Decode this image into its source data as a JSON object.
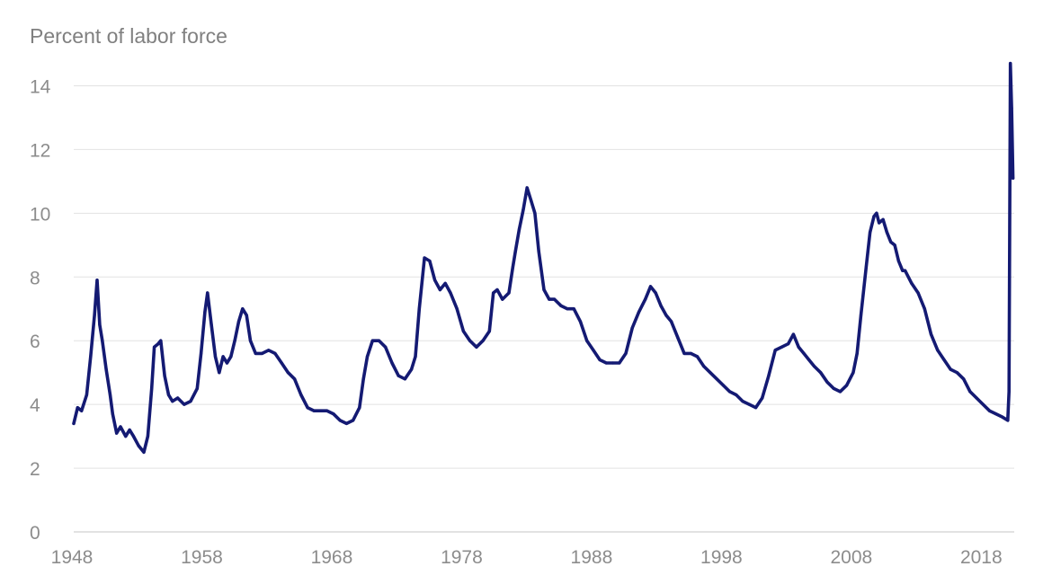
{
  "chart_data": {
    "type": "line",
    "title": "",
    "ylabel": "Percent of labor force",
    "xlabel": "",
    "ylim": [
      0,
      15
    ],
    "xlim": [
      1948,
      2020.4
    ],
    "y_ticks": [
      0,
      2,
      4,
      6,
      8,
      10,
      12,
      14
    ],
    "x_ticks": [
      1948,
      1958,
      1968,
      1978,
      1988,
      1998,
      2008,
      2018
    ],
    "grid": true,
    "line_color": "#141a73",
    "series": [
      {
        "x": [
          1948.0,
          1948.3,
          1948.6,
          1949.0,
          1949.3,
          1949.6,
          1949.8,
          1950.0,
          1950.2,
          1950.5,
          1950.8,
          1951.0,
          1951.3,
          1951.6,
          1952.0,
          1952.3,
          1952.6,
          1953.0,
          1953.4,
          1953.7,
          1954.0,
          1954.2,
          1954.5,
          1954.7,
          1955.0,
          1955.3,
          1955.6,
          1956.0,
          1956.5,
          1957.0,
          1957.5,
          1957.8,
          1958.1,
          1958.3,
          1958.6,
          1958.9,
          1959.2,
          1959.5,
          1959.8,
          1960.1,
          1960.4,
          1960.7,
          1961.0,
          1961.3,
          1961.6,
          1962.0,
          1962.5,
          1963.0,
          1963.5,
          1964.0,
          1964.5,
          1965.0,
          1965.5,
          1966.0,
          1966.5,
          1967.0,
          1967.5,
          1968.0,
          1968.5,
          1969.0,
          1969.5,
          1970.0,
          1970.3,
          1970.6,
          1971.0,
          1971.5,
          1972.0,
          1972.5,
          1973.0,
          1973.5,
          1974.0,
          1974.3,
          1974.6,
          1975.0,
          1975.4,
          1975.8,
          1976.2,
          1976.6,
          1977.0,
          1977.5,
          1978.0,
          1978.5,
          1979.0,
          1979.5,
          1980.0,
          1980.3,
          1980.6,
          1981.0,
          1981.5,
          1981.8,
          1982.0,
          1982.3,
          1982.6,
          1982.9,
          1983.2,
          1983.5,
          1983.8,
          1984.2,
          1984.6,
          1985.0,
          1985.5,
          1986.0,
          1986.5,
          1987.0,
          1987.5,
          1988.0,
          1988.5,
          1989.0,
          1989.5,
          1990.0,
          1990.5,
          1991.0,
          1991.5,
          1992.0,
          1992.4,
          1992.8,
          1993.2,
          1993.6,
          1994.0,
          1994.5,
          1995.0,
          1995.5,
          1996.0,
          1996.5,
          1997.0,
          1997.5,
          1998.0,
          1998.5,
          1999.0,
          1999.5,
          2000.0,
          2000.5,
          2001.0,
          2001.5,
          2002.0,
          2002.5,
          2003.0,
          2003.4,
          2003.8,
          2004.2,
          2004.6,
          2005.0,
          2005.5,
          2006.0,
          2006.5,
          2007.0,
          2007.5,
          2008.0,
          2008.3,
          2008.6,
          2009.0,
          2009.3,
          2009.6,
          2009.8,
          2010.0,
          2010.3,
          2010.6,
          2010.9,
          2011.2,
          2011.5,
          2011.8,
          2012.0,
          2012.5,
          2013.0,
          2013.5,
          2014.0,
          2014.5,
          2015.0,
          2015.5,
          2016.0,
          2016.5,
          2017.0,
          2017.5,
          2018.0,
          2018.5,
          2019.0,
          2019.5,
          2019.9,
          2020.0,
          2020.1,
          2020.2,
          2020.3
        ],
        "values": [
          3.4,
          3.9,
          3.8,
          4.3,
          5.5,
          6.8,
          7.9,
          6.5,
          6.0,
          5.1,
          4.3,
          3.7,
          3.1,
          3.3,
          3.0,
          3.2,
          3.0,
          2.7,
          2.5,
          3.0,
          4.5,
          5.8,
          5.9,
          6.0,
          4.9,
          4.3,
          4.1,
          4.2,
          4.0,
          4.1,
          4.5,
          5.6,
          6.9,
          7.5,
          6.5,
          5.5,
          5.0,
          5.5,
          5.3,
          5.5,
          6.0,
          6.6,
          7.0,
          6.8,
          6.0,
          5.6,
          5.6,
          5.7,
          5.6,
          5.3,
          5.0,
          4.8,
          4.3,
          3.9,
          3.8,
          3.8,
          3.8,
          3.7,
          3.5,
          3.4,
          3.5,
          3.9,
          4.8,
          5.5,
          6.0,
          6.0,
          5.8,
          5.3,
          4.9,
          4.8,
          5.1,
          5.5,
          7.0,
          8.6,
          8.5,
          7.9,
          7.6,
          7.8,
          7.5,
          7.0,
          6.3,
          6.0,
          5.8,
          6.0,
          6.3,
          7.5,
          7.6,
          7.3,
          7.5,
          8.3,
          8.8,
          9.5,
          10.1,
          10.8,
          10.4,
          10.0,
          8.8,
          7.6,
          7.3,
          7.3,
          7.1,
          7.0,
          7.0,
          6.6,
          6.0,
          5.7,
          5.4,
          5.3,
          5.3,
          5.3,
          5.6,
          6.4,
          6.9,
          7.3,
          7.7,
          7.5,
          7.1,
          6.8,
          6.6,
          6.1,
          5.6,
          5.6,
          5.5,
          5.2,
          5.0,
          4.8,
          4.6,
          4.4,
          4.3,
          4.1,
          4.0,
          3.9,
          4.2,
          4.9,
          5.7,
          5.8,
          5.9,
          6.2,
          5.8,
          5.6,
          5.4,
          5.2,
          5.0,
          4.7,
          4.5,
          4.4,
          4.6,
          5.0,
          5.6,
          6.8,
          8.3,
          9.4,
          9.9,
          10.0,
          9.7,
          9.8,
          9.4,
          9.1,
          9.0,
          8.5,
          8.2,
          8.2,
          7.8,
          7.5,
          7.0,
          6.2,
          5.7,
          5.4,
          5.1,
          5.0,
          4.8,
          4.4,
          4.2,
          4.0,
          3.8,
          3.7,
          3.6,
          3.5,
          4.4,
          14.7,
          13.3,
          11.1
        ]
      }
    ]
  }
}
